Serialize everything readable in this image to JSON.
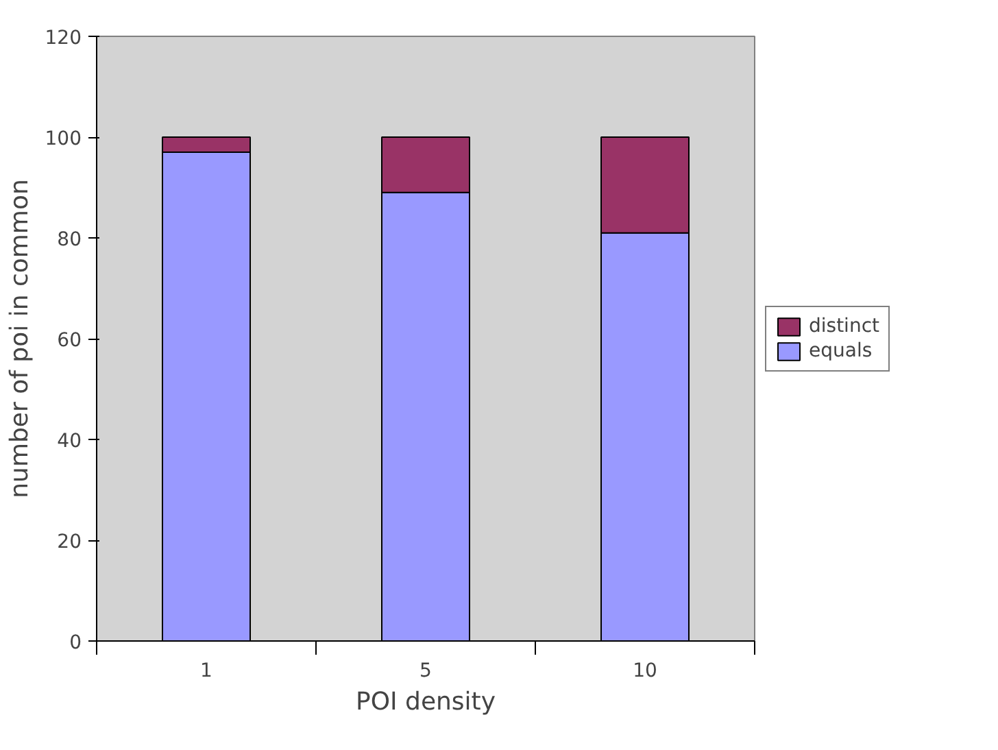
{
  "chart_data": {
    "type": "bar",
    "stacked": true,
    "xlabel": "POI density",
    "ylabel": "number of poi in common",
    "categories": [
      "1",
      "5",
      "10"
    ],
    "series": [
      {
        "name": "equals",
        "color": "#9999ff",
        "values": [
          97,
          89,
          81
        ]
      },
      {
        "name": "distinct",
        "color": "#993366",
        "values": [
          3,
          11,
          19
        ]
      }
    ],
    "ylim": [
      0,
      120
    ],
    "yticks": [
      0,
      20,
      40,
      60,
      80,
      100,
      120
    ],
    "grid": false,
    "legend": "right"
  }
}
